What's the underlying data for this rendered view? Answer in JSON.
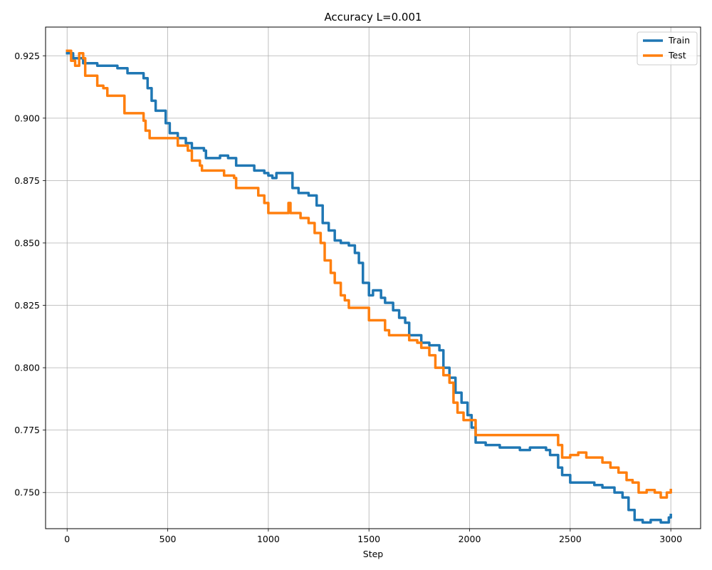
{
  "chart_data": {
    "type": "line",
    "title": "Accuracy L=0.001",
    "xlabel": "Step",
    "ylabel": "",
    "xlim": [
      -107,
      3148
    ],
    "ylim": [
      0.7355,
      0.9365
    ],
    "xticks": [
      0,
      500,
      1000,
      1500,
      2000,
      2500,
      3000
    ],
    "xtick_labels": [
      "0",
      "500",
      "1000",
      "1500",
      "2000",
      "2500",
      "3000"
    ],
    "yticks": [
      0.75,
      0.775,
      0.8,
      0.825,
      0.85,
      0.875,
      0.9,
      0.925
    ],
    "ytick_labels": [
      "0.750",
      "0.775",
      "0.800",
      "0.825",
      "0.850",
      "0.875",
      "0.900",
      "0.925"
    ],
    "grid": true,
    "legend_position": "top-right",
    "series": [
      {
        "name": "Train",
        "color": "#1f77b4",
        "points": [
          [
            0,
            0.926
          ],
          [
            30,
            0.924
          ],
          [
            80,
            0.922
          ],
          [
            140,
            0.922
          ],
          [
            150,
            0.921
          ],
          [
            250,
            0.92
          ],
          [
            300,
            0.918
          ],
          [
            360,
            0.918
          ],
          [
            380,
            0.916
          ],
          [
            400,
            0.912
          ],
          [
            420,
            0.907
          ],
          [
            440,
            0.903
          ],
          [
            490,
            0.898
          ],
          [
            510,
            0.894
          ],
          [
            550,
            0.892
          ],
          [
            590,
            0.89
          ],
          [
            620,
            0.888
          ],
          [
            680,
            0.887
          ],
          [
            690,
            0.884
          ],
          [
            760,
            0.885
          ],
          [
            800,
            0.884
          ],
          [
            840,
            0.881
          ],
          [
            880,
            0.881
          ],
          [
            930,
            0.879
          ],
          [
            980,
            0.878
          ],
          [
            1000,
            0.877
          ],
          [
            1020,
            0.876
          ],
          [
            1040,
            0.878
          ],
          [
            1100,
            0.878
          ],
          [
            1120,
            0.872
          ],
          [
            1150,
            0.87
          ],
          [
            1200,
            0.869
          ],
          [
            1240,
            0.865
          ],
          [
            1270,
            0.858
          ],
          [
            1300,
            0.855
          ],
          [
            1330,
            0.851
          ],
          [
            1360,
            0.85
          ],
          [
            1400,
            0.849
          ],
          [
            1430,
            0.846
          ],
          [
            1450,
            0.842
          ],
          [
            1470,
            0.834
          ],
          [
            1500,
            0.829
          ],
          [
            1520,
            0.831
          ],
          [
            1560,
            0.828
          ],
          [
            1580,
            0.826
          ],
          [
            1620,
            0.823
          ],
          [
            1650,
            0.82
          ],
          [
            1680,
            0.818
          ],
          [
            1700,
            0.813
          ],
          [
            1760,
            0.81
          ],
          [
            1800,
            0.809
          ],
          [
            1850,
            0.807
          ],
          [
            1870,
            0.8
          ],
          [
            1900,
            0.796
          ],
          [
            1930,
            0.79
          ],
          [
            1960,
            0.786
          ],
          [
            1990,
            0.781
          ],
          [
            2010,
            0.776
          ],
          [
            2030,
            0.77
          ],
          [
            2080,
            0.769
          ],
          [
            2100,
            0.769
          ],
          [
            2150,
            0.768
          ],
          [
            2200,
            0.768
          ],
          [
            2250,
            0.767
          ],
          [
            2300,
            0.768
          ],
          [
            2380,
            0.767
          ],
          [
            2400,
            0.765
          ],
          [
            2440,
            0.76
          ],
          [
            2460,
            0.757
          ],
          [
            2500,
            0.754
          ],
          [
            2560,
            0.754
          ],
          [
            2620,
            0.753
          ],
          [
            2660,
            0.752
          ],
          [
            2720,
            0.75
          ],
          [
            2760,
            0.748
          ],
          [
            2790,
            0.743
          ],
          [
            2820,
            0.739
          ],
          [
            2860,
            0.738
          ],
          [
            2900,
            0.739
          ],
          [
            2950,
            0.738
          ],
          [
            2990,
            0.74
          ],
          [
            3000,
            0.741
          ]
        ]
      },
      {
        "name": "Test",
        "color": "#ff7f0e",
        "points": [
          [
            0,
            0.927
          ],
          [
            20,
            0.923
          ],
          [
            40,
            0.921
          ],
          [
            60,
            0.926
          ],
          [
            80,
            0.924
          ],
          [
            90,
            0.917
          ],
          [
            140,
            0.917
          ],
          [
            150,
            0.913
          ],
          [
            180,
            0.912
          ],
          [
            200,
            0.909
          ],
          [
            280,
            0.909
          ],
          [
            285,
            0.902
          ],
          [
            370,
            0.902
          ],
          [
            380,
            0.899
          ],
          [
            390,
            0.895
          ],
          [
            410,
            0.892
          ],
          [
            520,
            0.892
          ],
          [
            550,
            0.889
          ],
          [
            600,
            0.887
          ],
          [
            620,
            0.883
          ],
          [
            660,
            0.881
          ],
          [
            670,
            0.879
          ],
          [
            760,
            0.879
          ],
          [
            780,
            0.877
          ],
          [
            830,
            0.876
          ],
          [
            840,
            0.872
          ],
          [
            920,
            0.872
          ],
          [
            950,
            0.869
          ],
          [
            980,
            0.866
          ],
          [
            1000,
            0.862
          ],
          [
            1080,
            0.862
          ],
          [
            1100,
            0.866
          ],
          [
            1110,
            0.862
          ],
          [
            1160,
            0.86
          ],
          [
            1200,
            0.858
          ],
          [
            1230,
            0.854
          ],
          [
            1260,
            0.85
          ],
          [
            1280,
            0.843
          ],
          [
            1310,
            0.838
          ],
          [
            1330,
            0.834
          ],
          [
            1360,
            0.829
          ],
          [
            1380,
            0.827
          ],
          [
            1400,
            0.824
          ],
          [
            1480,
            0.824
          ],
          [
            1500,
            0.819
          ],
          [
            1560,
            0.819
          ],
          [
            1580,
            0.815
          ],
          [
            1600,
            0.813
          ],
          [
            1640,
            0.813
          ],
          [
            1700,
            0.811
          ],
          [
            1740,
            0.81
          ],
          [
            1760,
            0.808
          ],
          [
            1800,
            0.805
          ],
          [
            1830,
            0.8
          ],
          [
            1870,
            0.797
          ],
          [
            1900,
            0.794
          ],
          [
            1920,
            0.786
          ],
          [
            1940,
            0.782
          ],
          [
            1970,
            0.779
          ],
          [
            2000,
            0.779
          ],
          [
            2030,
            0.773
          ],
          [
            2100,
            0.773
          ],
          [
            2200,
            0.773
          ],
          [
            2300,
            0.773
          ],
          [
            2420,
            0.773
          ],
          [
            2440,
            0.769
          ],
          [
            2460,
            0.764
          ],
          [
            2500,
            0.765
          ],
          [
            2540,
            0.766
          ],
          [
            2580,
            0.764
          ],
          [
            2620,
            0.764
          ],
          [
            2660,
            0.762
          ],
          [
            2700,
            0.76
          ],
          [
            2740,
            0.758
          ],
          [
            2780,
            0.755
          ],
          [
            2810,
            0.754
          ],
          [
            2840,
            0.75
          ],
          [
            2880,
            0.751
          ],
          [
            2920,
            0.75
          ],
          [
            2950,
            0.748
          ],
          [
            2980,
            0.75
          ],
          [
            3000,
            0.751
          ]
        ]
      }
    ]
  }
}
